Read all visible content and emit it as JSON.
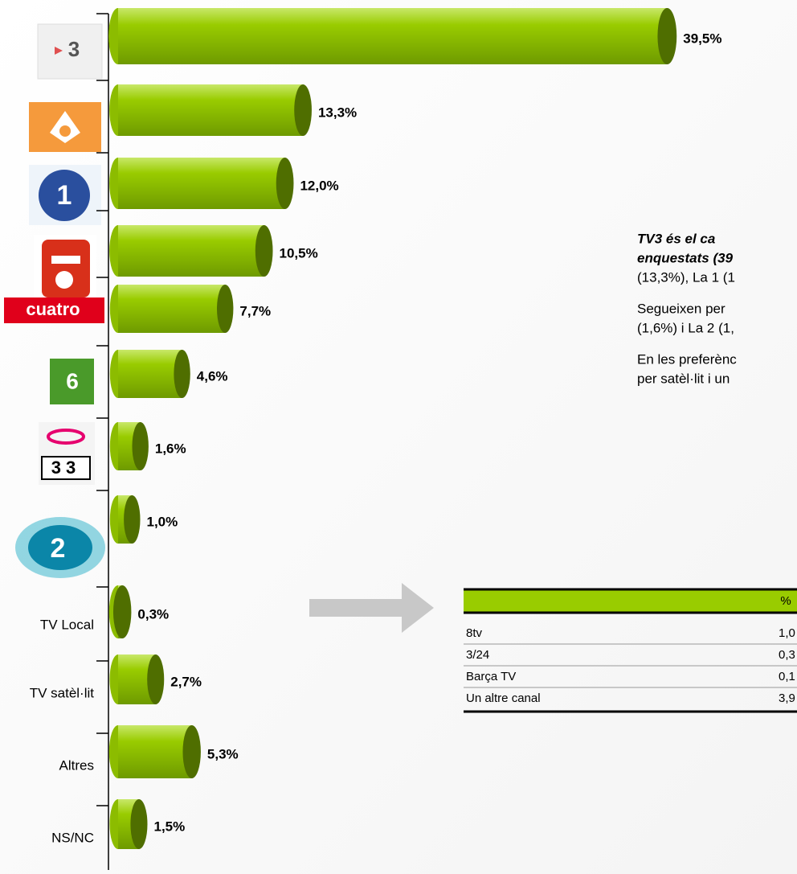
{
  "chart_data": {
    "type": "bar",
    "categories": [
      null,
      null,
      null,
      null,
      null,
      null,
      null,
      null,
      "TV Local",
      "TV satèl·lit",
      "Altres",
      "NS/NC"
    ],
    "logos": [
      "3",
      null,
      "1",
      null,
      "cuatro",
      null,
      "33",
      "2",
      null,
      null,
      null,
      null
    ],
    "values": [
      39.5,
      13.3,
      12.0,
      10.5,
      7.7,
      4.6,
      1.6,
      1.0,
      0.3,
      2.7,
      5.3,
      1.5
    ],
    "value_labels": [
      "39,5%",
      "13,3%",
      "12,0%",
      "10,5%",
      "7,7%",
      "4,6%",
      "1,6%",
      "1,0%",
      "0,3%",
      "2,7%",
      "5,3%",
      "1,5%"
    ],
    "color": "#99cc00"
  },
  "text": {
    "lines": [
      "TV3 és el ca",
      "enquestats (39",
      "(13,3%), La 1 (1",
      "Segueixen per",
      "(1,6%) i La 2 (1,",
      "En les preferènc",
      "per satèl·lit i un"
    ]
  },
  "table": {
    "header": "%",
    "rows": [
      [
        "8tv",
        "1,0"
      ],
      [
        "3/24",
        "0,3"
      ],
      [
        "Barça TV",
        "0,1"
      ],
      [
        "Un altre canal",
        "3,9"
      ]
    ]
  }
}
